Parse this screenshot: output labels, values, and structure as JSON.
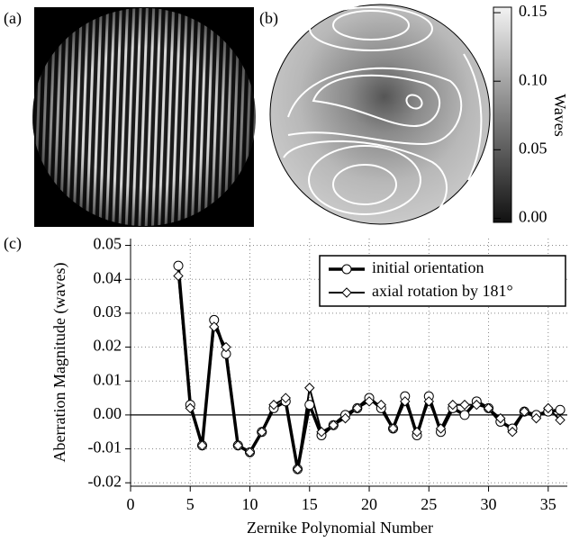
{
  "chart_data": [
    {
      "type": "image",
      "label": "(a)"
    },
    {
      "type": "contour",
      "label": "(b)",
      "colorbar": {
        "label": "Waves",
        "ylim": [
          -0.003,
          0.154
        ],
        "yticks": [
          {
            "value": 0,
            "label": "0.00"
          },
          0.05,
          {
            "value": 0.1,
            "label": "0.10"
          },
          0.15
        ]
      }
    },
    {
      "type": "line",
      "label": "(c)",
      "xlabel": "Zernike Polynomial Number",
      "ylabel": "Aberration Magnitude (waves)",
      "x": [
        4,
        5,
        6,
        7,
        8,
        9,
        10,
        11,
        12,
        13,
        14,
        15,
        16,
        17,
        18,
        19,
        20,
        21,
        22,
        23,
        24,
        25,
        26,
        27,
        28,
        29,
        30,
        31,
        32,
        33,
        34,
        35,
        36
      ],
      "series": [
        {
          "name": "initial orientation",
          "color": "#000000",
          "marker": "circle",
          "values": [
            0.044,
            0.003,
            -0.009,
            0.028,
            0.018,
            -0.009,
            -0.011,
            -0.005,
            0.002,
            0.004,
            -0.016,
            0.003,
            -0.006,
            -0.003,
            0.0,
            0.002,
            0.005,
            0.002,
            -0.004,
            0.0055,
            -0.006,
            0.0055,
            -0.005,
            0.002,
            0.0,
            0.004,
            0.002,
            -0.002,
            -0.004,
            0.001,
            0.0,
            0.001,
            0.0015
          ]
        },
        {
          "name": "axial rotation by 181°",
          "color": "#000000",
          "marker": "diamond",
          "values": [
            0.041,
            0.002,
            -0.009,
            0.026,
            0.02,
            -0.009,
            -0.011,
            -0.005,
            0.003,
            0.005,
            -0.016,
            0.008,
            -0.005,
            -0.003,
            -0.001,
            0.002,
            0.004,
            0.003,
            -0.004,
            0.004,
            -0.005,
            0.004,
            -0.004,
            0.003,
            0.003,
            0.003,
            0.002,
            -0.001,
            -0.005,
            0.001,
            -0.001,
            0.002,
            -0.0015
          ]
        }
      ],
      "xlim": [
        0,
        36.6
      ],
      "ylim": [
        -0.021,
        0.052
      ],
      "xticks": [
        0,
        5,
        10,
        15,
        20,
        25,
        30,
        35
      ],
      "yticks": [
        0.05,
        0.04,
        0.03,
        0.02,
        0.01,
        {
          "value": 0,
          "label": "0.00"
        },
        -0.01,
        -0.02
      ],
      "grid": true,
      "legend": "upper right"
    }
  ]
}
